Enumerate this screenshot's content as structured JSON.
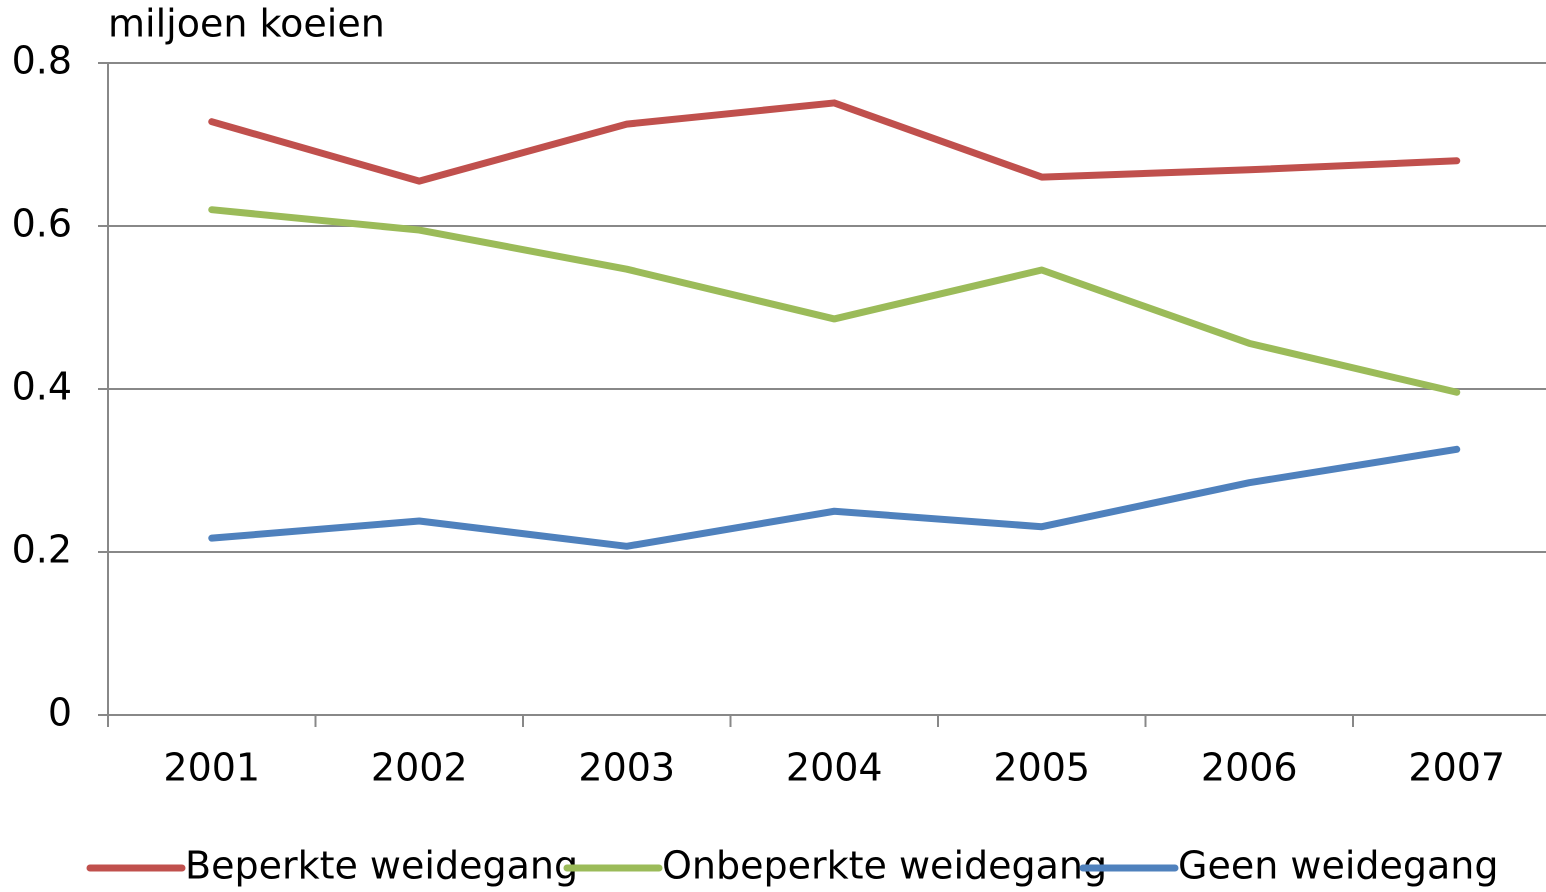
{
  "chart_data": {
    "type": "line",
    "y_label": "miljoen koeien",
    "categories": [
      "2001",
      "2002",
      "2003",
      "2004",
      "2005",
      "2006",
      "2007"
    ],
    "series": [
      {
        "name": "Beperkte weidegang",
        "color": "#c0504d",
        "values": [
          0.728,
          0.655,
          0.725,
          0.751,
          0.66,
          0.669,
          0.68
        ]
      },
      {
        "name": "Onbeperkte weidegang",
        "color": "#9bbb59",
        "values": [
          0.62,
          0.595,
          0.547,
          0.486,
          0.546,
          0.456,
          0.396
        ]
      },
      {
        "name": "Geen weidegang",
        "color": "#4f81bd",
        "values": [
          0.217,
          0.238,
          0.207,
          0.25,
          0.231,
          0.285,
          0.326
        ]
      }
    ],
    "ylim": [
      0,
      0.8
    ],
    "yticks": [
      0,
      0.2,
      0.4,
      0.6,
      0.8
    ],
    "grid": true,
    "legend": "bottom"
  }
}
